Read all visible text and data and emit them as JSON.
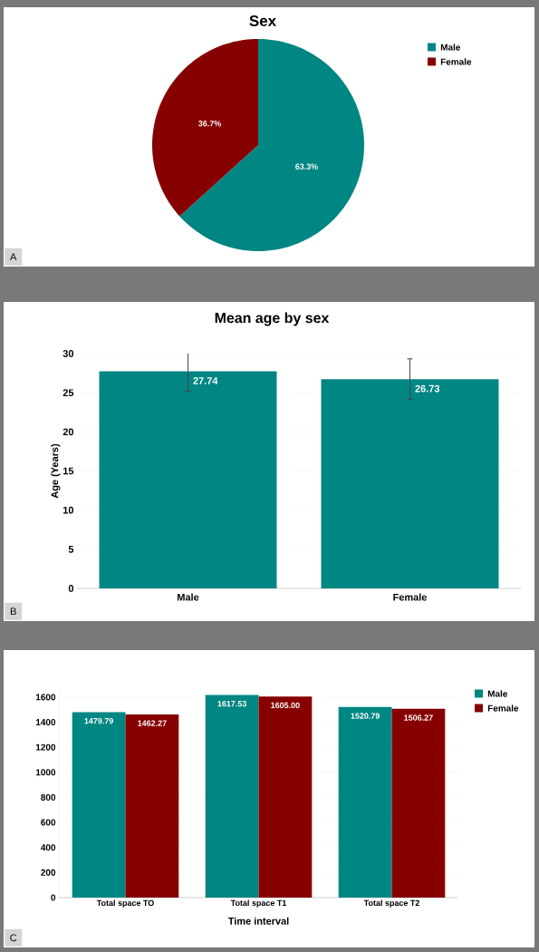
{
  "chart_data": [
    {
      "type": "pie",
      "title": "Sex",
      "categories": [
        "Male",
        "Female"
      ],
      "values": [
        63.3,
        36.7
      ],
      "colors": [
        "#008683",
        "#870000"
      ],
      "value_labels": [
        "63.3%",
        "36.7%"
      ],
      "legend": "top right",
      "annotations": [
        "A"
      ]
    },
    {
      "type": "bar",
      "title": "Mean age by sex",
      "ylabel": "Age (Years)",
      "categories": [
        "Male",
        "Female"
      ],
      "values": [
        27.74,
        26.73
      ],
      "errors": [
        2.55,
        2.6
      ],
      "value_labels": [
        "27.74",
        "26.73"
      ],
      "color": "#008683",
      "ylim": [
        0,
        30
      ],
      "yticks": [
        0,
        5,
        10,
        15,
        20,
        25,
        30
      ],
      "grid": "y",
      "annotations": [
        "B"
      ]
    },
    {
      "type": "bar",
      "xlabel": "Time interval",
      "categories": [
        "Total space TO",
        "Total space T1",
        "Total space T2"
      ],
      "series": [
        {
          "name": "Male",
          "color": "#008683",
          "values": [
            1479.79,
            1617.53,
            1520.79
          ],
          "value_labels": [
            "1479.79",
            "1617.53",
            "1520.79"
          ]
        },
        {
          "name": "Female",
          "color": "#870000",
          "values": [
            1462.27,
            1605.0,
            1506.27
          ],
          "value_labels": [
            "1462.27",
            "1605.00",
            "1506.27"
          ]
        }
      ],
      "ylim": [
        0,
        1650
      ],
      "yticks": [
        0,
        200,
        400,
        600,
        800,
        1000,
        1200,
        1400,
        1600
      ],
      "grid": "y",
      "legend": "top right",
      "annotations": [
        "C"
      ]
    }
  ]
}
